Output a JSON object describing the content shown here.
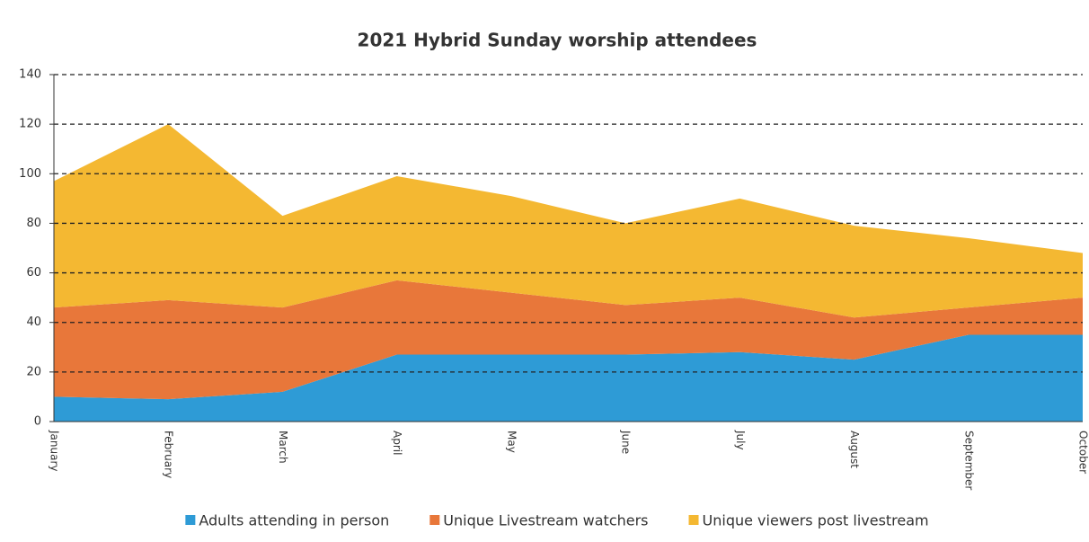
{
  "chart_data": {
    "type": "area_stacked",
    "title": "2021 Hybrid Sunday worship attendees",
    "categories": [
      "January",
      "February",
      "March",
      "April",
      "May",
      "June",
      "July",
      "August",
      "September",
      "October"
    ],
    "series": [
      {
        "name": "Adults attending in person",
        "color": "#2e9bd6",
        "values": [
          10,
          9,
          12,
          27,
          27,
          27,
          28,
          25,
          35,
          35
        ]
      },
      {
        "name": "Unique Livestream watchers",
        "color": "#e8773a",
        "values": [
          36,
          40,
          34,
          30,
          25,
          20,
          22,
          17,
          11,
          15
        ]
      },
      {
        "name": "Unique viewers post livestream",
        "color": "#f4b832",
        "values": [
          51,
          71,
          37,
          42,
          39,
          33,
          40,
          37,
          28,
          18
        ]
      }
    ],
    "ylim": [
      0,
      140
    ],
    "yticks": [
      0,
      20,
      40,
      60,
      80,
      100,
      120,
      140
    ],
    "grid": true,
    "legend": "bottom"
  }
}
